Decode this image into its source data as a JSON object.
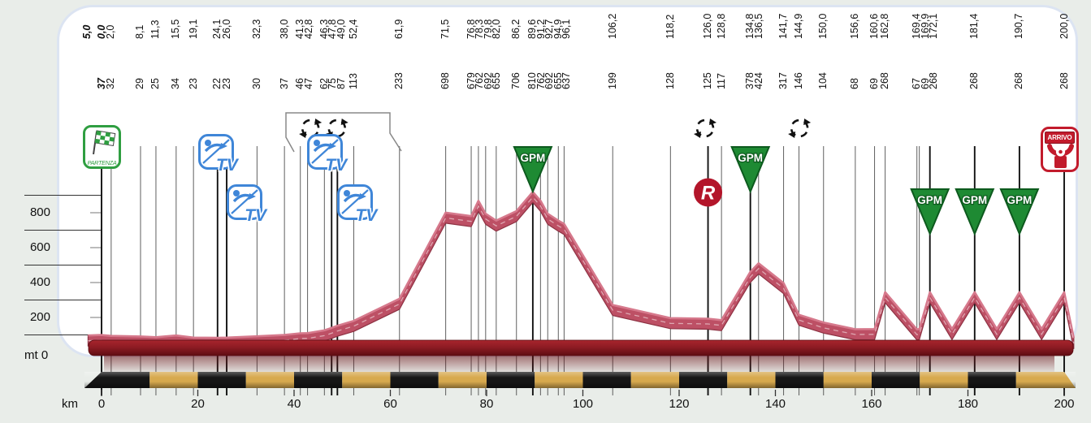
{
  "axes": {
    "y_unit_label": "mt 0",
    "x_unit_label": "km",
    "y_tick_labels": [
      "800",
      "600",
      "400",
      "200"
    ],
    "y_tick_values": [
      800,
      600,
      400,
      200
    ],
    "y_gridline_values": [
      900,
      700,
      500,
      300,
      100
    ],
    "x_tick_labels": [
      "0",
      "20",
      "40",
      "60",
      "80",
      "100",
      "120",
      "140",
      "160",
      "180",
      "200"
    ],
    "x_tick_values": [
      0,
      20,
      40,
      60,
      80,
      100,
      120,
      140,
      160,
      180,
      200
    ]
  },
  "chart_data": {
    "type": "area",
    "xlabel": "km",
    "ylabel": "mt",
    "xlim": [
      0,
      200
    ],
    "ylim": [
      0,
      900
    ],
    "grid": "horizontal-left-margin",
    "pre_start": {
      "km": -3,
      "label": "5,0",
      "bold": true
    },
    "points": [
      {
        "km": 0.0,
        "label": "0,0",
        "elev": 37,
        "bold": true
      },
      {
        "km": 2.0,
        "label": "2,0",
        "elev": 32
      },
      {
        "km": 8.1,
        "label": "8,1",
        "elev": 29
      },
      {
        "km": 11.3,
        "label": "11,3",
        "elev": 25
      },
      {
        "km": 15.5,
        "label": "15,5",
        "elev": 34
      },
      {
        "km": 19.1,
        "label": "19,1",
        "elev": 23
      },
      {
        "km": 24.1,
        "label": "24,1",
        "elev": 22
      },
      {
        "km": 26.0,
        "label": "26,0",
        "elev": 23
      },
      {
        "km": 32.3,
        "label": "32,3",
        "elev": 30
      },
      {
        "km": 38.0,
        "label": "38,0",
        "elev": 37
      },
      {
        "km": 41.3,
        "label": "41,3",
        "elev": 46
      },
      {
        "km": 42.8,
        "label": "42,8",
        "elev": 47
      },
      {
        "km": 46.3,
        "label": "46,3",
        "elev": 62
      },
      {
        "km": 47.8,
        "label": "47,8",
        "elev": 75
      },
      {
        "km": 49.0,
        "label": "49,0",
        "elev": 87
      },
      {
        "km": 52.4,
        "label": "52,4",
        "elev": 113
      },
      {
        "km": 61.9,
        "label": "61,9",
        "elev": 233
      },
      {
        "km": 71.5,
        "label": "71,5",
        "elev": 698
      },
      {
        "km": 76.8,
        "label": "76,8",
        "elev": 679
      },
      {
        "km": 78.3,
        "label": "78,3",
        "elev": 762
      },
      {
        "km": 79.8,
        "label": "79,8",
        "elev": 692
      },
      {
        "km": 82.0,
        "label": "82,0",
        "elev": 655
      },
      {
        "km": 86.2,
        "label": "86,2",
        "elev": 706
      },
      {
        "km": 89.6,
        "label": "89,6",
        "elev": 810
      },
      {
        "km": 91.2,
        "label": "91,2",
        "elev": 762
      },
      {
        "km": 92.7,
        "label": "92,7",
        "elev": 692
      },
      {
        "km": 94.9,
        "label": "94,9",
        "elev": 655
      },
      {
        "km": 96.1,
        "label": "96,1",
        "elev": 637
      },
      {
        "km": 106.2,
        "label": "106,2",
        "elev": 199
      },
      {
        "km": 118.2,
        "label": "118,2",
        "elev": 128
      },
      {
        "km": 126.0,
        "label": "126,0",
        "elev": 125
      },
      {
        "km": 128.8,
        "label": "128,8",
        "elev": 117
      },
      {
        "km": 134.8,
        "label": "134,8",
        "elev": 378
      },
      {
        "km": 136.5,
        "label": "136,5",
        "elev": 424
      },
      {
        "km": 141.7,
        "label": "141,7",
        "elev": 317
      },
      {
        "km": 144.9,
        "label": "144,9",
        "elev": 146
      },
      {
        "km": 150.0,
        "label": "150,0",
        "elev": 104
      },
      {
        "km": 156.6,
        "label": "156,6",
        "elev": 68
      },
      {
        "km": 160.6,
        "label": "160,6",
        "elev": 69
      },
      {
        "km": 162.8,
        "label": "162,8",
        "elev": 268
      },
      {
        "km": 169.4,
        "label": "169,4",
        "elev": 67
      },
      {
        "km": 169.9,
        "label": "169,9",
        "elev": 69
      },
      {
        "km": 172.1,
        "label": "172,1",
        "elev": 268
      },
      {
        "km": 181.4,
        "label": "181,4",
        "elev": 268
      },
      {
        "km": 190.7,
        "label": "190,7",
        "elev": 268
      },
      {
        "km": 200.0,
        "label": "200,0",
        "elev": 268
      }
    ],
    "unlabeled_valleys": [
      {
        "km": 176.7,
        "elev": 69
      },
      {
        "km": 186.0,
        "elev": 69
      },
      {
        "km": 195.3,
        "elev": 69
      }
    ]
  },
  "markers": {
    "start": {
      "label": "PARTENZA",
      "km": 0
    },
    "finish": {
      "label": "ARRIVO",
      "km": 200
    },
    "sprints": {
      "label": "TV",
      "kms": [
        24.1,
        26.0,
        47.8,
        49.0
      ]
    },
    "gpm": {
      "label": "GPM",
      "items": [
        {
          "km": 89.6,
          "row": 1
        },
        {
          "km": 134.8,
          "row": 1
        },
        {
          "km": 172.1,
          "row": 2
        },
        {
          "km": 181.4,
          "row": 2
        },
        {
          "km": 190.7,
          "row": 2
        }
      ]
    },
    "feed": {
      "label": "R",
      "km": 126.0
    },
    "laps": {
      "kms": [
        43.4,
        48.9,
        125.4,
        145.0
      ]
    },
    "lap_bracket": {
      "from_km": 38.0,
      "to_km": 60.0
    }
  },
  "colors": {
    "profile_fill": "#bd5065",
    "profile_edge": "#8e3243",
    "profile_highlight": "#d6798c",
    "road_top": "#a8262e",
    "road_mid": "#8e1b23",
    "road_dark": "#5f0d13",
    "stripe_gold": "#d7a94e",
    "stripe_black": "#161616",
    "gpm_green": "#1e8a33",
    "gpm_dark": "#0d5a1e",
    "tv_blue": "#3f86d8",
    "start_green": "#2f9e41",
    "finish_red": "#c21b2c",
    "feed_red": "#b3152a"
  }
}
